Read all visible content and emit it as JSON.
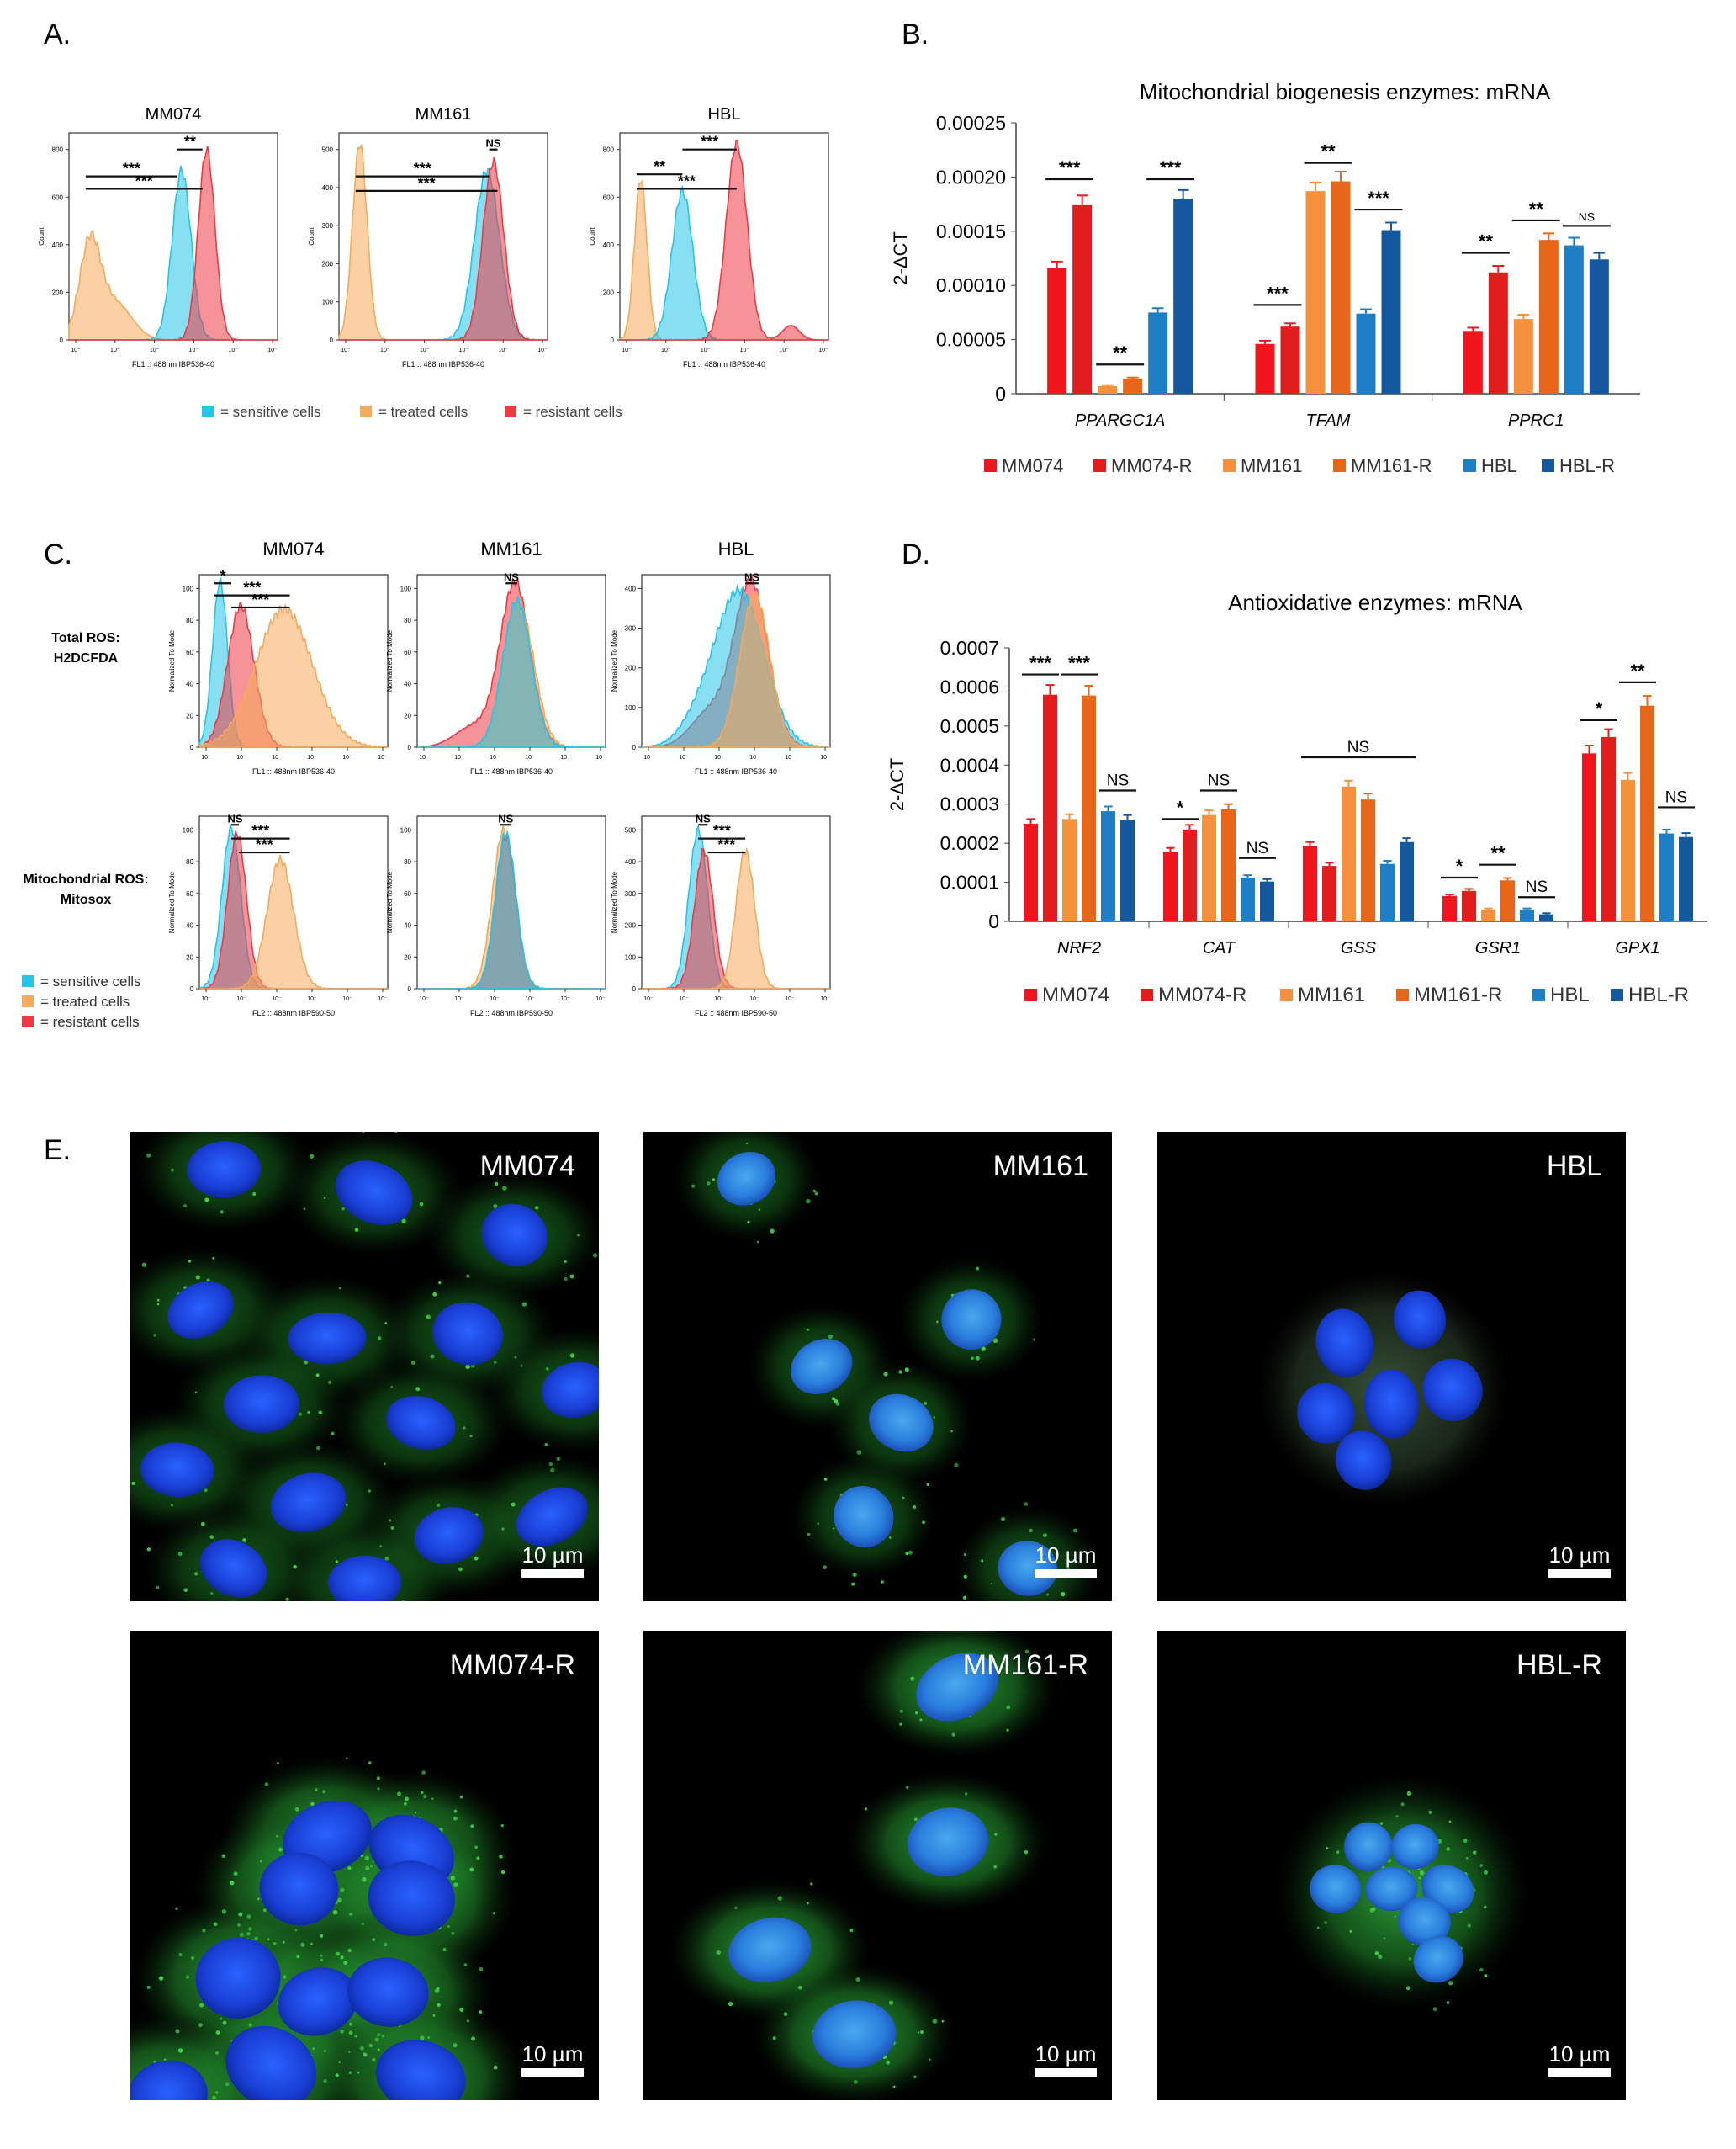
{
  "panels": {
    "a": "A.",
    "b": "B.",
    "c": "C.",
    "d": "D.",
    "e": "E."
  },
  "panelA": {
    "plots": [
      {
        "title": "MM074",
        "yticks": [
          "0",
          "200",
          "400",
          "600",
          "800"
        ],
        "ylabel": "Count",
        "xlabel": "FL1 :: 488nm IBP536-40",
        "sig": [
          {
            "label": "***",
            "x1": 0.08,
            "x2": 0.52,
            "y": 0.21
          },
          {
            "label": "***",
            "x1": 0.08,
            "x2": 0.64,
            "y": 0.27
          },
          {
            "label": "**",
            "x1": 0.52,
            "x2": 0.64,
            "y": 0.08
          }
        ],
        "curves": [
          {
            "pop": "treated",
            "mu": 0.1,
            "s": 0.05,
            "h": 0.45,
            "tail": 0.18
          },
          {
            "pop": "sensitive",
            "mu": 0.54,
            "s": 0.045,
            "h": 0.82
          },
          {
            "pop": "resistant",
            "mu": 0.66,
            "s": 0.04,
            "h": 0.92
          }
        ]
      },
      {
        "title": "MM161",
        "yticks": [
          "0",
          "100",
          "200",
          "300",
          "400",
          "500"
        ],
        "ylabel": "Count",
        "xlabel": "FL1 :: 488nm IBP536-40",
        "sig": [
          {
            "label": "***",
            "x1": 0.08,
            "x2": 0.72,
            "y": 0.21
          },
          {
            "label": "***",
            "x1": 0.08,
            "x2": 0.76,
            "y": 0.28
          },
          {
            "label": "NS",
            "x1": 0.72,
            "x2": 0.76,
            "y": 0.08
          }
        ],
        "curves": [
          {
            "pop": "treated",
            "mu": 0.1,
            "s": 0.035,
            "h": 0.95
          },
          {
            "pop": "sensitive",
            "mu": 0.71,
            "s": 0.06,
            "h": 0.82
          },
          {
            "pop": "resistant",
            "mu": 0.74,
            "s": 0.05,
            "h": 0.86
          }
        ]
      },
      {
        "title": "HBL",
        "yticks": [
          "0",
          "200",
          "400",
          "600",
          "800"
        ],
        "ylabel": "Count",
        "xlabel": "FL1 :: 488nm IBP536-40",
        "sig": [
          {
            "label": "**",
            "x1": 0.08,
            "x2": 0.3,
            "y": 0.2
          },
          {
            "label": "***",
            "x1": 0.08,
            "x2": 0.56,
            "y": 0.27
          },
          {
            "label": "***",
            "x1": 0.3,
            "x2": 0.56,
            "y": 0.08
          }
        ],
        "curves": [
          {
            "pop": "treated",
            "mu": 0.1,
            "s": 0.03,
            "h": 0.78
          },
          {
            "pop": "sensitive",
            "mu": 0.3,
            "s": 0.05,
            "h": 0.72
          },
          {
            "pop": "resistant",
            "mu": 0.56,
            "s": 0.05,
            "h": 0.95,
            "bump": 0.82
          }
        ]
      }
    ],
    "legend": [
      "= sensitive cells",
      "= treated cells",
      "= resistant cells"
    ]
  },
  "colors": {
    "sensitive": "#27c4e6",
    "treated": "#f5a95a",
    "resistant": "#ee3a44",
    "mm074": "#f0141c",
    "mm074r": "#e01e1e",
    "mm161": "#f5913c",
    "mm161r": "#e8661a",
    "hbl": "#1f7fc6",
    "hblr": "#14589e"
  },
  "chart_data": [
    {
      "type": "bar",
      "title": "Mitochondrial biogenesis enzymes: mRNA",
      "ylabel": "2-ΔCT",
      "ylim": [
        0,
        0.00025
      ],
      "yticks": [
        "0",
        "0.00005",
        "0.00010",
        "0.00015",
        "0.00020",
        "0.00025"
      ],
      "categories": [
        "PPARGC1A",
        "TFAM",
        "PPRC1"
      ],
      "series": [
        {
          "name": "MM074",
          "values": [
            0.000116,
            4.6e-05,
            5.8e-05
          ],
          "err": [
            6e-06,
            3e-06,
            3e-06
          ]
        },
        {
          "name": "MM074-R",
          "values": [
            0.000174,
            6.2e-05,
            0.000112
          ],
          "err": [
            9e-06,
            3e-06,
            6e-06
          ]
        },
        {
          "name": "MM161",
          "values": [
            7e-06,
            0.000187,
            6.9e-05
          ],
          "err": [
            1e-06,
            8e-06,
            4e-06
          ]
        },
        {
          "name": "MM161-R",
          "values": [
            1.4e-05,
            0.000196,
            0.000142
          ],
          "err": [
            1e-06,
            9e-06,
            6e-06
          ]
        },
        {
          "name": "HBL",
          "values": [
            7.5e-05,
            7.4e-05,
            0.000137
          ],
          "err": [
            4e-06,
            4e-06,
            7e-06
          ]
        },
        {
          "name": "HBL-R",
          "values": [
            0.00018,
            0.000151,
            0.000124
          ],
          "err": [
            8e-06,
            7e-06,
            6e-06
          ]
        }
      ],
      "sig": [
        {
          "cat": 0,
          "s1": 0,
          "s2": 1,
          "y": 0.000198,
          "label": "***"
        },
        {
          "cat": 0,
          "s1": 2,
          "s2": 3,
          "y": 2.7e-05,
          "label": "**"
        },
        {
          "cat": 0,
          "s1": 4,
          "s2": 5,
          "y": 0.000198,
          "label": "***"
        },
        {
          "cat": 1,
          "s1": 0,
          "s2": 1,
          "y": 8.2e-05,
          "label": "***"
        },
        {
          "cat": 1,
          "s1": 2,
          "s2": 3,
          "y": 0.000213,
          "label": "**"
        },
        {
          "cat": 1,
          "s1": 4,
          "s2": 5,
          "y": 0.00017,
          "label": "***"
        },
        {
          "cat": 2,
          "s1": 0,
          "s2": 1,
          "y": 0.00013,
          "label": "**"
        },
        {
          "cat": 2,
          "s1": 2,
          "s2": 3,
          "y": 0.00016,
          "label": "**"
        },
        {
          "cat": 2,
          "s1": 4,
          "s2": 5,
          "y": 0.000155,
          "label": "NS"
        }
      ]
    },
    {
      "type": "bar",
      "title": "Antioxidative enzymes: mRNA",
      "ylabel": "2-ΔCT",
      "ylim": [
        0,
        0.0007
      ],
      "yticks": [
        "0",
        "0.0001",
        "0.0002",
        "0.0003",
        "0.0004",
        "0.0005",
        "0.0006",
        "0.0007"
      ],
      "categories": [
        "NRF2",
        "CAT",
        "GSS",
        "GSR1",
        "GPX1"
      ],
      "series": [
        {
          "name": "MM074",
          "values": [
            0.00025,
            0.000178,
            0.000193,
            6.5e-05,
            0.00043
          ],
          "err": [
            1.2e-05,
            1e-05,
            1e-05,
            4e-06,
            2e-05
          ]
        },
        {
          "name": "MM074-R",
          "values": [
            0.00058,
            0.000235,
            0.000142,
            7.8e-05,
            0.000472
          ],
          "err": [
            2.5e-05,
            1.2e-05,
            8e-06,
            5e-06,
            2e-05
          ]
        },
        {
          "name": "MM161",
          "values": [
            0.000262,
            0.000272,
            0.000345,
            3e-05,
            0.000362
          ],
          "err": [
            1.2e-05,
            1.2e-05,
            1.5e-05,
            3e-06,
            1.8e-05
          ]
        },
        {
          "name": "MM161-R",
          "values": [
            0.000578,
            0.000287,
            0.000312,
            0.000105,
            0.000552
          ],
          "err": [
            2.5e-05,
            1.3e-05,
            1.5e-05,
            6e-06,
            2.5e-05
          ]
        },
        {
          "name": "HBL",
          "values": [
            0.000282,
            0.000112,
            0.000147,
            3e-05,
            0.000225
          ],
          "err": [
            1.2e-05,
            6e-06,
            8e-06,
            3e-06,
            1e-05
          ]
        },
        {
          "name": "HBL-R",
          "values": [
            0.00026,
            0.000102,
            0.000203,
            1.8e-05,
            0.000216
          ],
          "err": [
            1.2e-05,
            6e-06,
            1e-05,
            3e-06,
            1e-05
          ]
        }
      ],
      "sig": [
        {
          "cat": 0,
          "s1": 0,
          "s2": 1,
          "y": 0.000632,
          "label": "***"
        },
        {
          "cat": 0,
          "s1": 2,
          "s2": 3,
          "y": 0.000632,
          "label": "***"
        },
        {
          "cat": 0,
          "s1": 4,
          "s2": 5,
          "y": 0.000335,
          "label": "NS"
        },
        {
          "cat": 1,
          "s1": 0,
          "s2": 1,
          "y": 0.000262,
          "label": "*"
        },
        {
          "cat": 1,
          "s1": 2,
          "s2": 3,
          "y": 0.000335,
          "label": "NS"
        },
        {
          "cat": 1,
          "s1": 4,
          "s2": 5,
          "y": 0.000162,
          "label": "NS"
        },
        {
          "cat": 2,
          "s1": 0,
          "s2": 5,
          "y": 0.00042,
          "label": "NS"
        },
        {
          "cat": 3,
          "s1": 0,
          "s2": 1,
          "y": 0.000112,
          "label": "*"
        },
        {
          "cat": 3,
          "s1": 2,
          "s2": 3,
          "y": 0.000145,
          "label": "**"
        },
        {
          "cat": 3,
          "s1": 4,
          "s2": 5,
          "y": 6.2e-05,
          "label": "NS"
        },
        {
          "cat": 4,
          "s1": 0,
          "s2": 1,
          "y": 0.000515,
          "label": "*"
        },
        {
          "cat": 4,
          "s1": 2,
          "s2": 3,
          "y": 0.000612,
          "label": "**"
        },
        {
          "cat": 4,
          "s1": 4,
          "s2": 5,
          "y": 0.000292,
          "label": "NS"
        }
      ]
    }
  ],
  "panelC": {
    "columns": [
      "MM074",
      "MM161",
      "HBL"
    ],
    "rows": [
      {
        "label1": "Total ROS:",
        "label2": "H2DCFDA",
        "ylabel": "Normalized To Mode",
        "xlabel": "FL1 :: 488nm IBP536-40",
        "yticks": [
          [
            "0",
            "20",
            "40",
            "60",
            "80",
            "100"
          ],
          [
            "0",
            "20",
            "40",
            "60",
            "80",
            "100"
          ],
          [
            "0",
            "100",
            "200",
            "300",
            "400"
          ]
        ],
        "plots": [
          {
            "sig": [
              {
                "label": "*",
                "x1": 0.08,
                "x2": 0.17,
                "y": 0.05
              },
              {
                "label": "***",
                "x1": 0.08,
                "x2": 0.48,
                "y": 0.12
              },
              {
                "label": "***",
                "x1": 0.17,
                "x2": 0.48,
                "y": 0.19
              }
            ],
            "curves": [
              {
                "pop": "sensitive",
                "mu": 0.11,
                "s": 0.04,
                "h": 0.96
              },
              {
                "pop": "resistant",
                "mu": 0.22,
                "s": 0.07,
                "h": 0.82
              },
              {
                "pop": "treated",
                "mu": 0.45,
                "s": 0.15,
                "h": 0.8
              }
            ]
          },
          {
            "sig": [
              {
                "label": "NS",
                "x1": 0.47,
                "x2": 0.53,
                "y": 0.05
              }
            ],
            "curves": [
              {
                "pop": "resistant",
                "mu": 0.52,
                "s": 0.08,
                "h": 0.95,
                "base": 0.12
              },
              {
                "pop": "treated",
                "mu": 0.54,
                "s": 0.08,
                "h": 0.82
              },
              {
                "pop": "sensitive",
                "mu": 0.53,
                "s": 0.075,
                "h": 0.85
              }
            ]
          },
          {
            "sig": [
              {
                "label": "NS",
                "x1": 0.55,
                "x2": 0.62,
                "y": 0.05
              }
            ],
            "curves": [
              {
                "pop": "resistant",
                "mu": 0.58,
                "s": 0.09,
                "h": 0.95,
                "base": 0.2
              },
              {
                "pop": "sensitive",
                "mu": 0.52,
                "s": 0.13,
                "h": 0.9,
                "base": 0.12
              },
              {
                "pop": "treated",
                "mu": 0.6,
                "s": 0.08,
                "h": 0.88
              }
            ]
          }
        ]
      },
      {
        "label1": "Mitochondrial ROS:",
        "label2": "Mitosox",
        "ylabel": "Normalized To Mode",
        "xlabel": "FL2 :: 488nm IBP590-50",
        "yticks": [
          [
            "0",
            "20",
            "40",
            "60",
            "80",
            "100"
          ],
          [
            "0",
            "20",
            "40",
            "60",
            "80",
            "100"
          ],
          [
            "0",
            "100",
            "200",
            "300",
            "400",
            "500"
          ]
        ],
        "plots": [
          {
            "sig": [
              {
                "label": "NS",
                "x1": 0.17,
                "x2": 0.21,
                "y": 0.05
              },
              {
                "label": "***",
                "x1": 0.17,
                "x2": 0.48,
                "y": 0.13
              },
              {
                "label": "***",
                "x1": 0.21,
                "x2": 0.48,
                "y": 0.21
              }
            ],
            "curves": [
              {
                "pop": "sensitive",
                "mu": 0.17,
                "s": 0.05,
                "h": 0.93
              },
              {
                "pop": "resistant",
                "mu": 0.2,
                "s": 0.05,
                "h": 0.9
              },
              {
                "pop": "treated",
                "mu": 0.43,
                "s": 0.07,
                "h": 0.75
              }
            ]
          },
          {
            "sig": [
              {
                "label": "NS",
                "x1": 0.44,
                "x2": 0.5,
                "y": 0.05
              }
            ],
            "curves": [
              {
                "pop": "treated",
                "mu": 0.46,
                "s": 0.06,
                "h": 0.92
              },
              {
                "pop": "resistant",
                "mu": 0.47,
                "s": 0.055,
                "h": 0.88
              },
              {
                "pop": "sensitive",
                "mu": 0.47,
                "s": 0.055,
                "h": 0.9
              }
            ]
          },
          {
            "sig": [
              {
                "label": "NS",
                "x1": 0.3,
                "x2": 0.35,
                "y": 0.05
              },
              {
                "label": "***",
                "x1": 0.3,
                "x2": 0.55,
                "y": 0.13
              },
              {
                "label": "***",
                "x1": 0.35,
                "x2": 0.55,
                "y": 0.21
              }
            ],
            "curves": [
              {
                "pop": "sensitive",
                "mu": 0.3,
                "s": 0.05,
                "h": 0.92
              },
              {
                "pop": "resistant",
                "mu": 0.33,
                "s": 0.05,
                "h": 0.8
              },
              {
                "pop": "treated",
                "mu": 0.55,
                "s": 0.05,
                "h": 0.8
              }
            ]
          }
        ]
      }
    ],
    "legend": [
      "= sensitive cells",
      "= treated cells",
      "= resistant cells"
    ]
  },
  "panelE": {
    "images": [
      {
        "label": "MM074",
        "scale": "10 µm",
        "kind": "mm074"
      },
      {
        "label": "MM161",
        "scale": "10 µm",
        "kind": "mm161"
      },
      {
        "label": "HBL",
        "scale": "10 µm",
        "kind": "hbl"
      },
      {
        "label": "MM074-R",
        "scale": "10 µm",
        "kind": "mm074r"
      },
      {
        "label": "MM161-R",
        "scale": "10 µm",
        "kind": "mm161r"
      },
      {
        "label": "HBL-R",
        "scale": "10 µm",
        "kind": "hblr"
      }
    ]
  }
}
